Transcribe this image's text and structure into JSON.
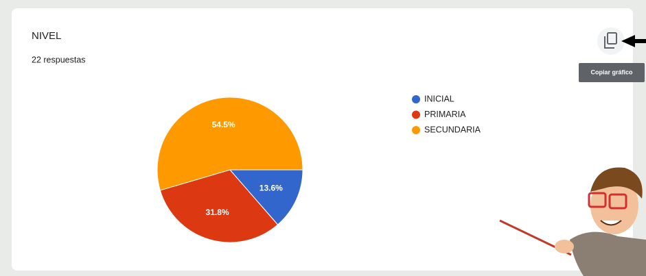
{
  "chart_data": {
    "type": "pie",
    "title": "NIVEL",
    "subtitle": "22 respuestas",
    "categories": [
      "INICIAL",
      "PRIMARIA",
      "SECUNDARIA"
    ],
    "values": [
      13.6,
      31.8,
      54.5
    ],
    "value_labels": [
      "13.6%",
      "31.8%",
      "54.5%"
    ],
    "colors": [
      "#3366cc",
      "#dc3912",
      "#ff9900"
    ]
  },
  "toolbar": {
    "tooltip": "Copiar gráfico"
  }
}
